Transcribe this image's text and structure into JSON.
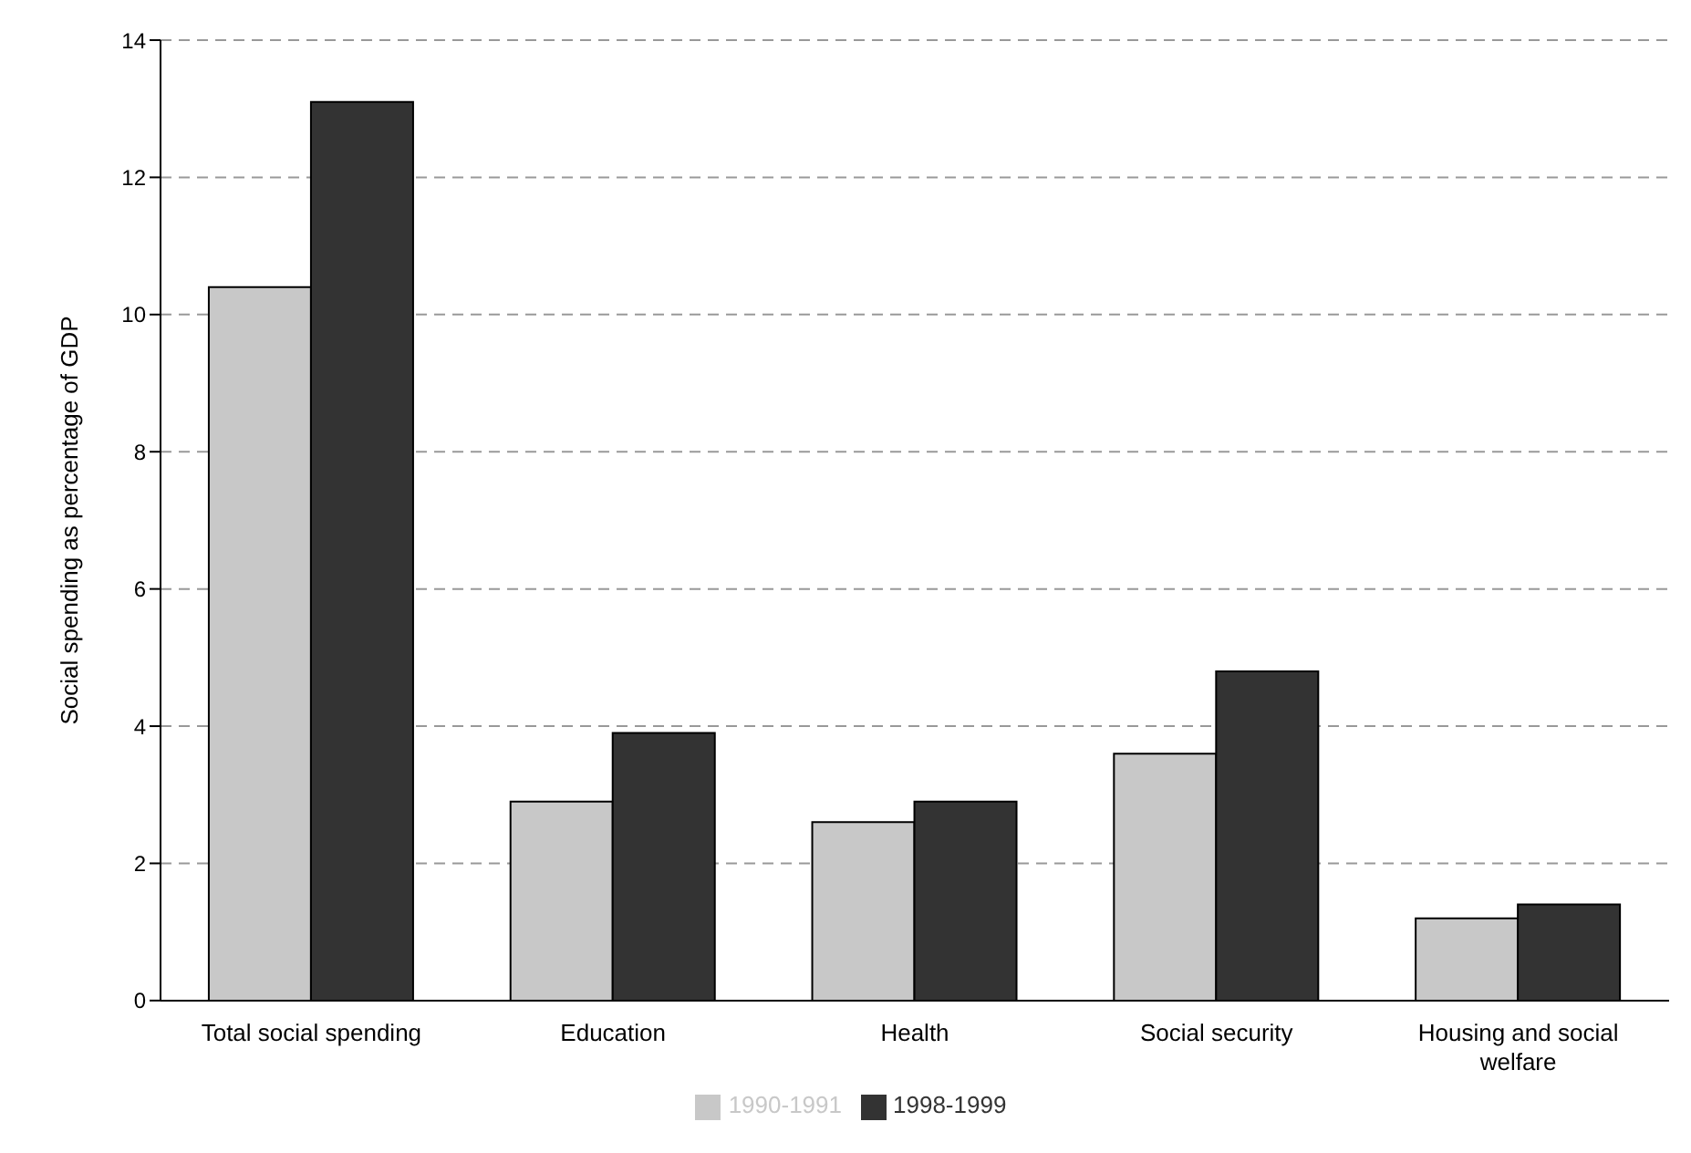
{
  "chart_data": {
    "type": "bar",
    "ylabel": "Social spending as percentage of GDP",
    "categories": [
      "Total social spending",
      "Education",
      "Health",
      "Social security",
      "Housing and social welfare"
    ],
    "series": [
      {
        "name": "1990-1991",
        "color": "#c8c8c8",
        "values": [
          10.4,
          2.9,
          2.6,
          3.6,
          1.2
        ]
      },
      {
        "name": "1998-1999",
        "color": "#333333",
        "values": [
          13.1,
          3.9,
          2.9,
          4.8,
          1.4
        ]
      }
    ],
    "ylim": [
      0,
      14
    ],
    "yticks": [
      0,
      2,
      4,
      6,
      8,
      10,
      12,
      14
    ],
    "grid": "y",
    "legend": "bottom"
  }
}
